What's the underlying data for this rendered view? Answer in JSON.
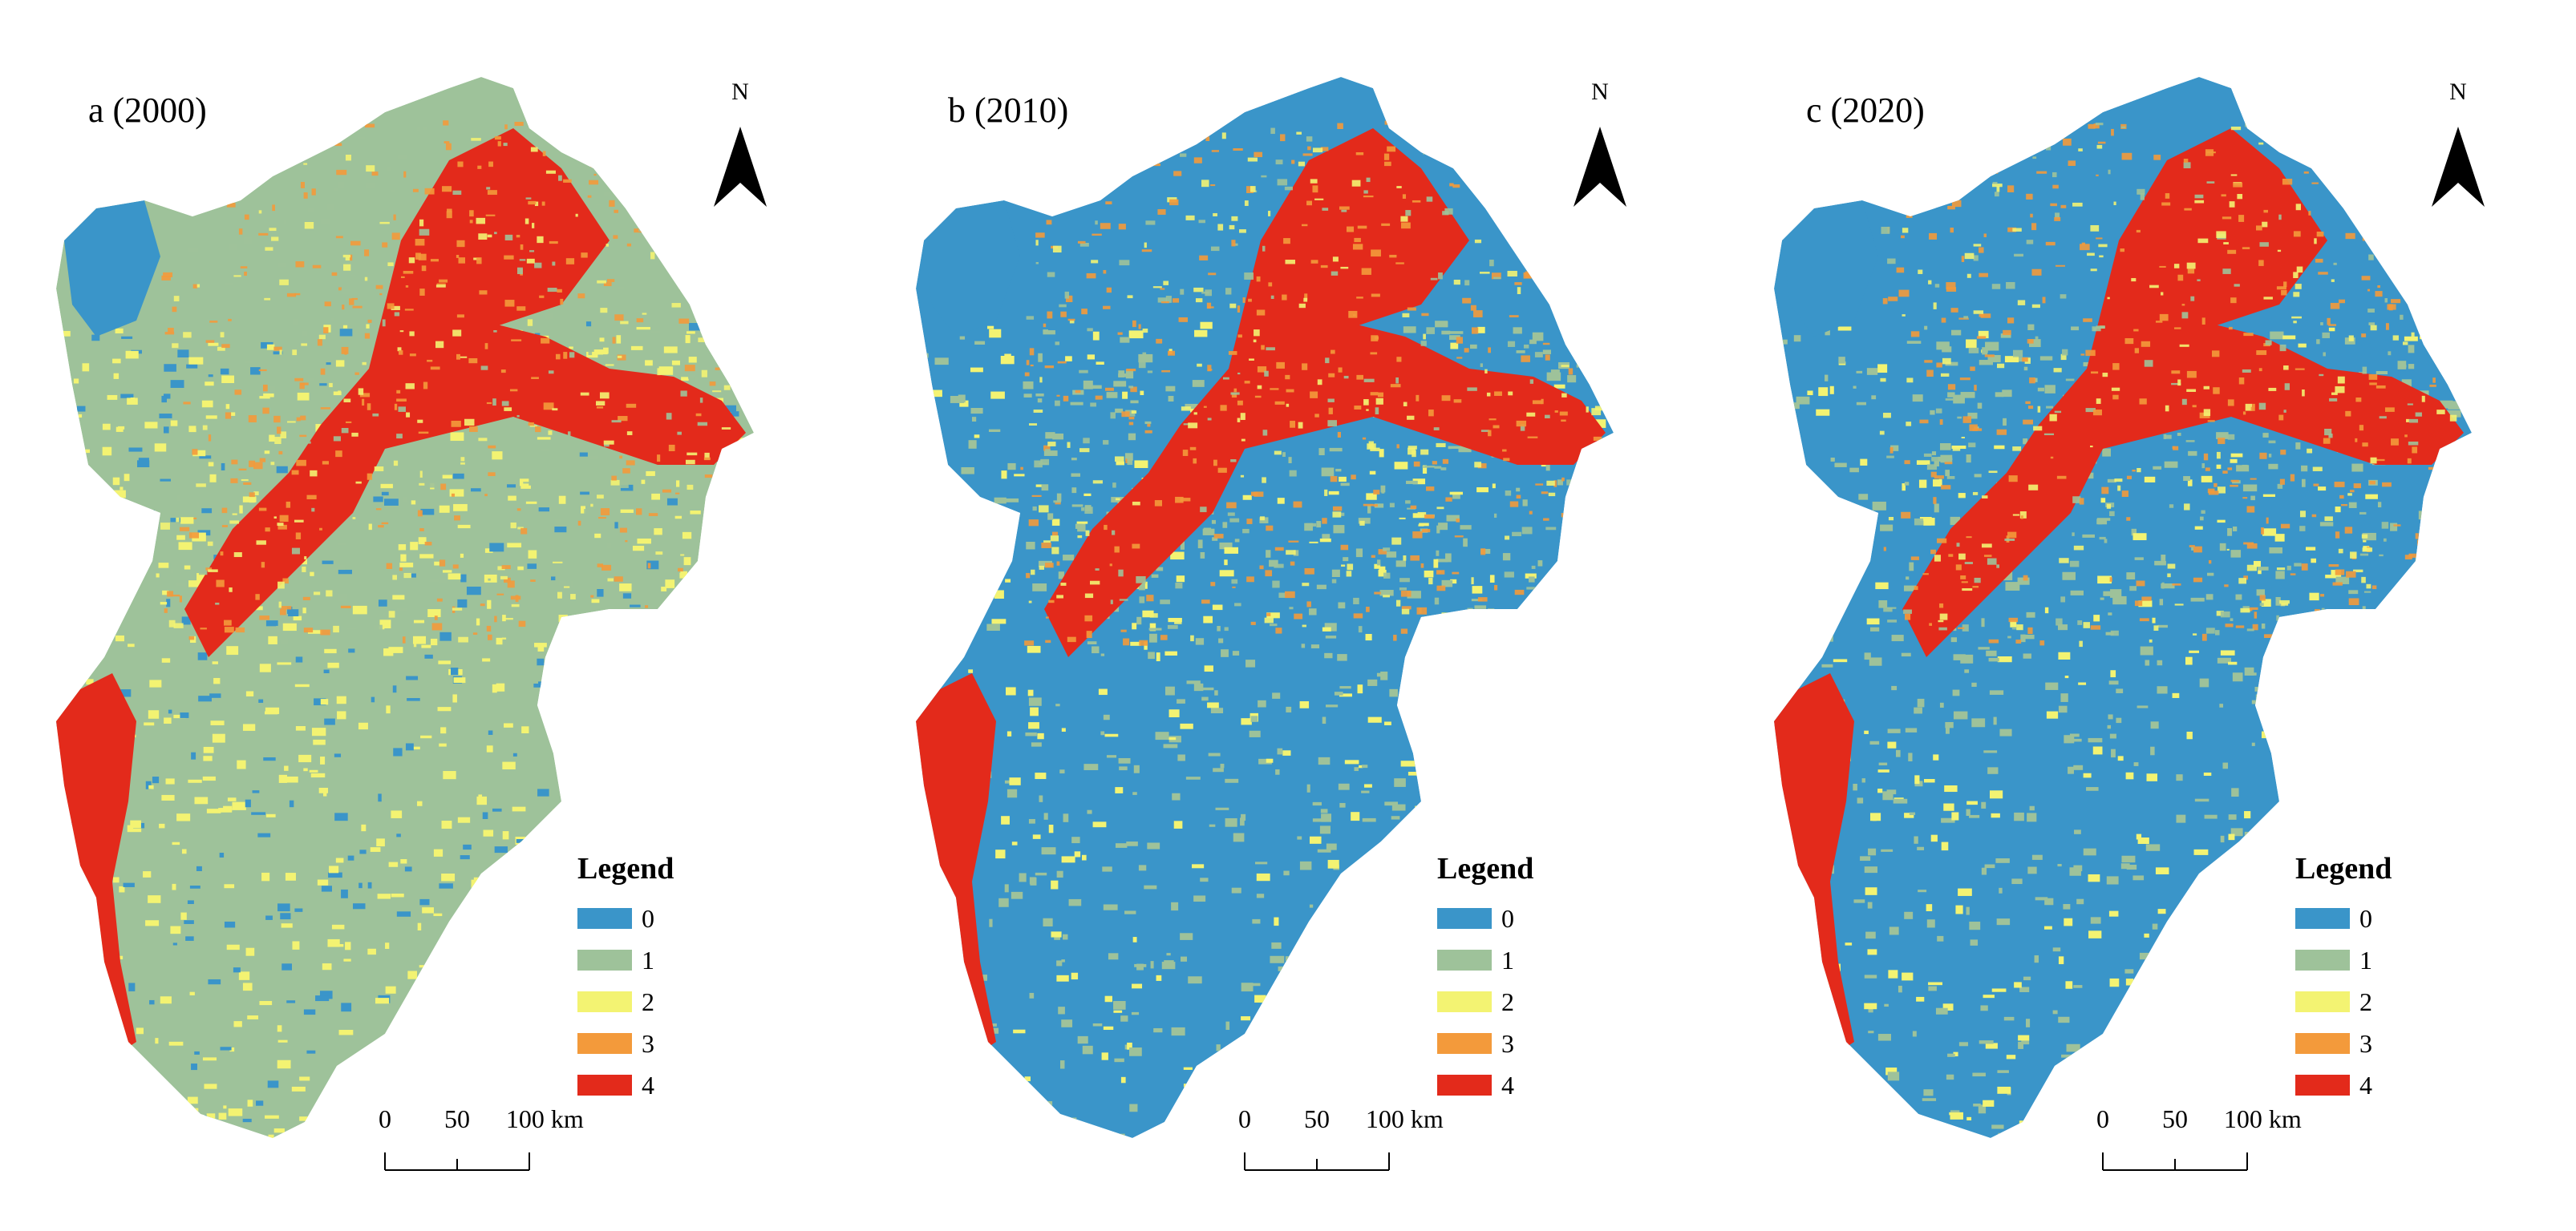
{
  "legend_colors": {
    "0": "#3a95c9",
    "1": "#9ec29a",
    "2": "#f3f372",
    "3": "#f39a3b",
    "4": "#e32a1b"
  },
  "panels": [
    {
      "title": "a (2000)",
      "north_label": "N",
      "legend_title": "Legend",
      "legend_items": [
        "0",
        "1",
        "2",
        "3",
        "4"
      ],
      "scale_labels": [
        "0",
        "50",
        "100"
      ],
      "scale_unit": "km",
      "dominant_classes": {
        "plain": "1",
        "mountain": "4"
      }
    },
    {
      "title": "b (2010)",
      "north_label": "N",
      "legend_title": "Legend",
      "legend_items": [
        "0",
        "1",
        "2",
        "3",
        "4"
      ],
      "scale_labels": [
        "0",
        "50",
        "100"
      ],
      "scale_unit": "km",
      "dominant_classes": {
        "plain": "0",
        "mountain": "4"
      }
    },
    {
      "title": "c (2020)",
      "north_label": "N",
      "legend_title": "Legend",
      "legend_items": [
        "0",
        "1",
        "2",
        "3",
        "4"
      ],
      "scale_labels": [
        "0",
        "50",
        "100"
      ],
      "scale_unit": "km",
      "dominant_classes": {
        "plain": "0",
        "mountain": "4"
      }
    }
  ]
}
